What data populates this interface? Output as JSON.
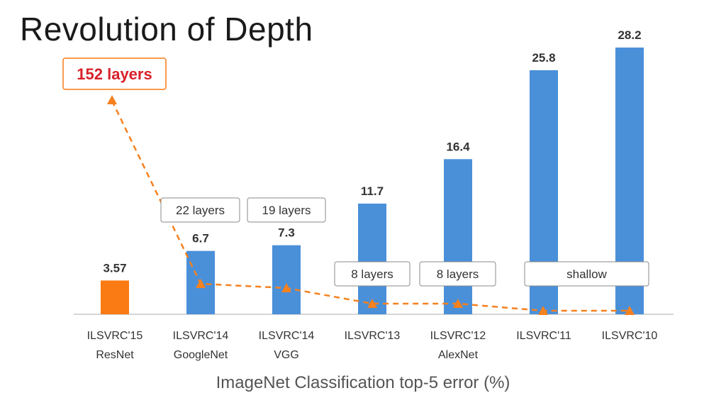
{
  "title": "Revolution of Depth",
  "caption": "ImageNet Classification top-5 error (%)",
  "colors": {
    "bar_primary": "#4a90d9",
    "bar_highlight": "#fa7a13",
    "depth_line": "#f5811f",
    "highlight_label": "#d8202a",
    "text": "#222222"
  },
  "chart_data": {
    "type": "bar",
    "categories": [
      "ILSVRC'15 ResNet",
      "ILSVRC'14 GoogleNet",
      "ILSVRC'14 VGG",
      "ILSVRC'13",
      "ILSVRC'12 AlexNet",
      "ILSVRC'11",
      "ILSVRC'10"
    ],
    "category_lines": [
      [
        "ILSVRC'15",
        "ResNet"
      ],
      [
        "ILSVRC'14",
        "GoogleNet"
      ],
      [
        "ILSVRC'14",
        "VGG"
      ],
      [
        "ILSVRC'13",
        ""
      ],
      [
        "ILSVRC'12",
        "AlexNet"
      ],
      [
        "ILSVRC'11",
        ""
      ],
      [
        "ILSVRC'10",
        ""
      ]
    ],
    "values": [
      3.57,
      6.7,
      7.3,
      11.7,
      16.4,
      25.8,
      28.2
    ],
    "value_labels": [
      "3.57",
      "6.7",
      "7.3",
      "11.7",
      "16.4",
      "25.8",
      "28.2"
    ],
    "highlight_index": 0,
    "ylim": [
      0,
      28.2
    ],
    "xlabel": "ImageNet Classification top-5 error (%)",
    "ylabel": "",
    "grid": false,
    "depth_annotations": [
      {
        "index": 0,
        "label": "152 layers"
      },
      {
        "index": 1,
        "label": "22 layers"
      },
      {
        "index": 2,
        "label": "19 layers"
      },
      {
        "index": 3,
        "label": "8 layers"
      },
      {
        "index": 4,
        "label": "8 layers"
      },
      {
        "index": 5,
        "label": "shallow"
      }
    ],
    "depth_layers": [
      152,
      22,
      19,
      8,
      8,
      null,
      null
    ]
  }
}
